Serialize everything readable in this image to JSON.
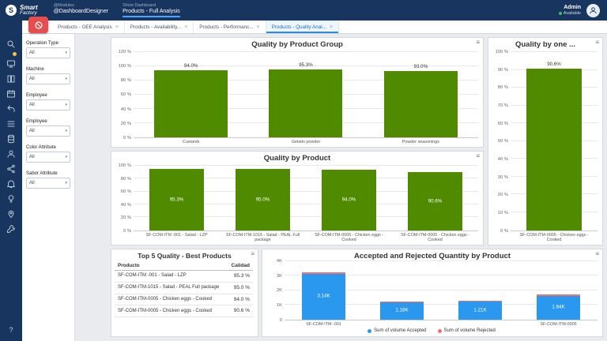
{
  "header": {
    "logo": {
      "initial": "S",
      "line1": "Smart",
      "line2": "Factory"
    },
    "nav": [
      {
        "small": "@Modulos",
        "label": "@DashboardDesigner"
      },
      {
        "small": "Show Dashboard",
        "label": "Products - Full Analysis"
      }
    ],
    "user": {
      "name": "Admin",
      "status": "Available"
    }
  },
  "tabs": [
    {
      "label": "Products - OEE Analysis",
      "active": false
    },
    {
      "label": "Products - Availability...",
      "active": false
    },
    {
      "label": "Products - Performanc...",
      "active": false
    },
    {
      "label": "Products - Quality Anal...",
      "active": true
    }
  ],
  "rail": {
    "icons": [
      "search-icon",
      "notification-dot",
      "monitor-icon",
      "book-icon",
      "calendar-icon",
      "reply-icon",
      "list-icon",
      "database-icon",
      "user-icon",
      "share-icon",
      "bell-icon",
      "bulb-icon",
      "pin-icon",
      "wrench-icon"
    ],
    "help_label": "?"
  },
  "filters": [
    {
      "label": "Operation Type",
      "value": "All"
    },
    {
      "label": "Machine",
      "value": "All"
    },
    {
      "label": "Employee",
      "value": "All"
    },
    {
      "label": "Employee",
      "value": "All"
    },
    {
      "label": "Color Attribute",
      "value": "All"
    },
    {
      "label": "Sabor Attribute",
      "value": "All"
    }
  ],
  "colors": {
    "header_navy": "#17355e",
    "accent_blue": "#2b8de0",
    "bar_green": "#4f8a00",
    "accepted_blue": "#2b98f0",
    "rejected_red": "#f2726b",
    "clear_button_red": "#e84c4c"
  },
  "chart_data": [
    {
      "type": "bar",
      "title": "Quality by Product Group",
      "categories": [
        "Custards",
        "Gelatin powder",
        "Powder seasonings"
      ],
      "values": [
        94.0,
        95.3,
        93.0
      ],
      "bar_labels": [
        "94.0%",
        "95.3%",
        "93.0%"
      ],
      "label_position": "above",
      "ylim": [
        0,
        120
      ],
      "yticks": [
        "0 %",
        "20 %",
        "40 %",
        "60 %",
        "80 %",
        "100 %",
        "120 %"
      ],
      "bar_color": "#4f8a00",
      "grid": true,
      "legend_position": "none"
    },
    {
      "type": "bar",
      "title": "Quality by one ...",
      "categories": [
        "SF-COM-ITM-0005 - Chicken eggs - Cooked"
      ],
      "values": [
        90.6
      ],
      "bar_labels": [
        "90.6%"
      ],
      "label_position": "above",
      "ylim": [
        0,
        100
      ],
      "yticks": [
        "0 %",
        "10 %",
        "20 %",
        "30 %",
        "40 %",
        "50 %",
        "60 %",
        "70 %",
        "80 %",
        "90 %",
        "100 %"
      ],
      "bar_color": "#4f8a00",
      "grid": true,
      "legend_position": "none"
    },
    {
      "type": "bar",
      "title": "Quality by Product",
      "categories": [
        "SF-COM-ITM -001 - Salad - LZP",
        "SF-COM-ITM-1015 - Salad - PEAL Full package",
        "SF-COM-ITM-0005 - Chicken eggs - Cooked",
        "SF-COM-ITM-0005 - Chicken eggs - Cooked"
      ],
      "values": [
        95.3,
        95.0,
        94.0,
        90.6
      ],
      "bar_labels": [
        "95.3%",
        "95.0%",
        "94.0%",
        "90.6%"
      ],
      "label_position": "inside",
      "ylim": [
        0,
        100
      ],
      "yticks": [
        "0 %",
        "20 %",
        "40 %",
        "60 %",
        "80 %",
        "100 %"
      ],
      "bar_color": "#4f8a00",
      "grid": true,
      "legend_position": "none"
    },
    {
      "type": "table",
      "title": "Top 5 Quality  - Best Products",
      "columns": [
        "Producto",
        "Calidad"
      ],
      "rows": [
        [
          "SF-COM-ITM -001 - Salad - LZP",
          "95.3 %"
        ],
        [
          "SF-COM-ITM-1015 - Salad - PEAL Full package",
          "95.0 %"
        ],
        [
          "SF-COM-ITM-0005 - Chicken eggs - Cooked",
          "94.0 %"
        ],
        [
          "SF-COM-ITM-0005 - Chicken eggs - Cooked",
          "90.6 %"
        ]
      ]
    },
    {
      "type": "bar",
      "title": "Accepted and Rejected Quantity by Product",
      "categories": [
        "SF-COM-ITM -001",
        "",
        "",
        "SF-COM-ITM-0005"
      ],
      "series": [
        {
          "name": "Sum of volume Accepted",
          "color": "#2b98f0",
          "values": [
            3140,
            1180,
            1210,
            1640
          ]
        },
        {
          "name": "Sum of volume Rejected",
          "color": "#f2726b",
          "values": [
            100,
            60,
            60,
            80
          ]
        }
      ],
      "bar_labels": [
        "3.14K",
        "1.18K",
        "1.21K",
        "1.64K"
      ],
      "label_position": "inside",
      "ylim": [
        0,
        4000
      ],
      "yticks": [
        "0",
        "1K",
        "2K",
        "3K",
        "4K"
      ],
      "grid": true,
      "legend": true,
      "legend_position": "bottom"
    }
  ]
}
